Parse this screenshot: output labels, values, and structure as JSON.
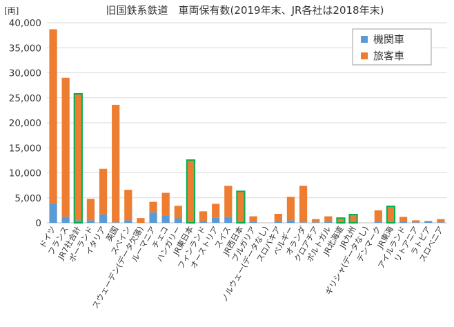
{
  "chart_data": {
    "type": "bar",
    "stacked": true,
    "title": "旧国鉄系鉄道　車両保有数(2019年末、JR各社は2018年末)",
    "unit_label": "[両]",
    "ylim": [
      0,
      40000
    ],
    "yticks": [
      "0",
      "5,000",
      "10,000",
      "15,000",
      "20,000",
      "25,000",
      "30,000",
      "35,000",
      "40,000"
    ],
    "grid": true,
    "legend_position": "top-right",
    "categories": [
      "ドイツ",
      "フランス",
      "JR7社合計",
      "ポーランド",
      "イタリア",
      "英国",
      "スペイン",
      "スウェーデン(データ欠落)",
      "ルーマニア",
      "チェコ",
      "ハンガリー",
      "JR東日本",
      "フィンランド",
      "オーストリア",
      "スイス",
      "JR西日本",
      "ブルガリア",
      "ノルウェー(データなし)",
      "スロバキア",
      "ベルギー",
      "オランダ",
      "クロアチア",
      "ポルトガル",
      "JR北海道",
      "JR九州",
      "ギリシャ(データなし)",
      "デンマーク",
      "JR東海",
      "アイルランド",
      "リトアニア",
      "ラトビア",
      "スロベニア"
    ],
    "highlighted": [
      "JR7社合計",
      "JR東日本",
      "JR西日本",
      "JR北海道",
      "JR九州",
      "JR東海"
    ],
    "series": [
      {
        "name": "機関車",
        "color": "#5b9bd5",
        "values": [
          3900,
          1200,
          500,
          500,
          1700,
          100,
          500,
          0,
          2100,
          1500,
          900,
          150,
          400,
          1000,
          1200,
          100,
          150,
          0,
          300,
          500,
          100,
          100,
          200,
          100,
          100,
          0,
          200,
          150,
          200,
          100,
          150,
          100
        ]
      },
      {
        "name": "旅客車",
        "color": "#ed7d31",
        "values": [
          34800,
          27800,
          25300,
          4300,
          9100,
          23500,
          6100,
          950,
          2100,
          4500,
          2500,
          12400,
          1900,
          2800,
          6200,
          6200,
          1150,
          0,
          1500,
          4700,
          7300,
          650,
          1100,
          850,
          1550,
          0,
          2300,
          3150,
          1000,
          400,
          250,
          650
        ]
      }
    ]
  }
}
